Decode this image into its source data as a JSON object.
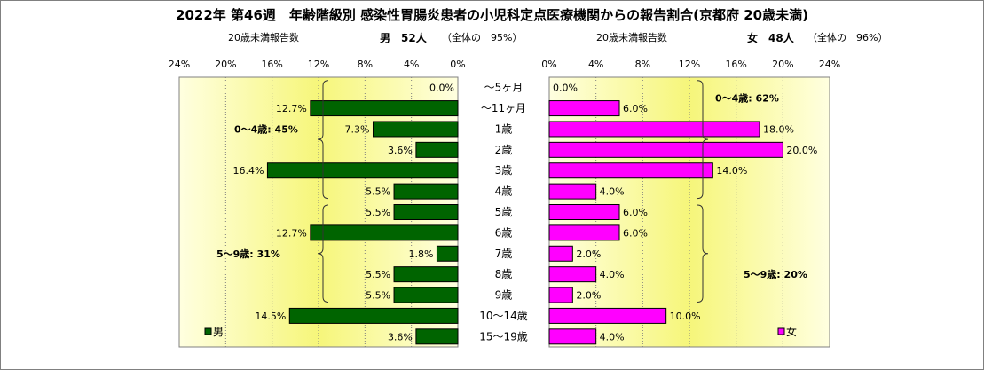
{
  "title": "2022年 第46週　年齢階級別 感染性胃腸炎患者の小児科定点医療機関からの報告割合(京都府 20歳未満)",
  "left_header": {
    "label": "20歳未満報告数",
    "sex": "男",
    "count": "52人",
    "share": "（全体の　95%）"
  },
  "right_header": {
    "label": "20歳未満報告数",
    "sex": "女",
    "count": "48人",
    "share": "（全体の　96%）"
  },
  "colors": {
    "male": "#006400",
    "female": "#ff00ff",
    "plot_edge": "#ffffe0",
    "plot_center": "#f6f67a"
  },
  "chart_data": {
    "type": "bar",
    "categories": [
      "～5ヶ月",
      "～11ヶ月",
      "1歳",
      "2歳",
      "3歳",
      "4歳",
      "5歳",
      "6歳",
      "7歳",
      "8歳",
      "9歳",
      "10～14歳",
      "15～19歳"
    ],
    "xlim": [
      0,
      24
    ],
    "ticks": [
      "0%",
      "4%",
      "8%",
      "12%",
      "16%",
      "20%",
      "24%"
    ],
    "grid": true,
    "series": [
      {
        "name": "男",
        "values": [
          0.0,
          12.7,
          7.3,
          3.6,
          16.4,
          5.5,
          5.5,
          12.7,
          1.8,
          5.5,
          5.5,
          14.5,
          3.6
        ],
        "labels": [
          "0.0%",
          "12.7%",
          "7.3%",
          "3.6%",
          "16.4%",
          "5.5%",
          "5.5%",
          "12.7%",
          "1.8%",
          "5.5%",
          "5.5%",
          "14.5%",
          "3.6%"
        ]
      },
      {
        "name": "女",
        "values": [
          0.0,
          6.0,
          18.0,
          20.0,
          14.0,
          4.0,
          6.0,
          6.0,
          2.0,
          4.0,
          2.0,
          10.0,
          4.0
        ],
        "labels": [
          "0.0%",
          "6.0%",
          "18.0%",
          "20.0%",
          "14.0%",
          "4.0%",
          "6.0%",
          "6.0%",
          "2.0%",
          "4.0%",
          "2.0%",
          "10.0%",
          "4.0%"
        ]
      }
    ],
    "annotations": {
      "male_0_4": "0～4歳: 45%",
      "male_5_9": "5～9歳: 31%",
      "female_0_4": "0～4歳: 62%",
      "female_5_9": "5～9歳: 20%"
    },
    "legend": {
      "male": "男",
      "female": "女",
      "placement": "bottom-inside"
    }
  }
}
